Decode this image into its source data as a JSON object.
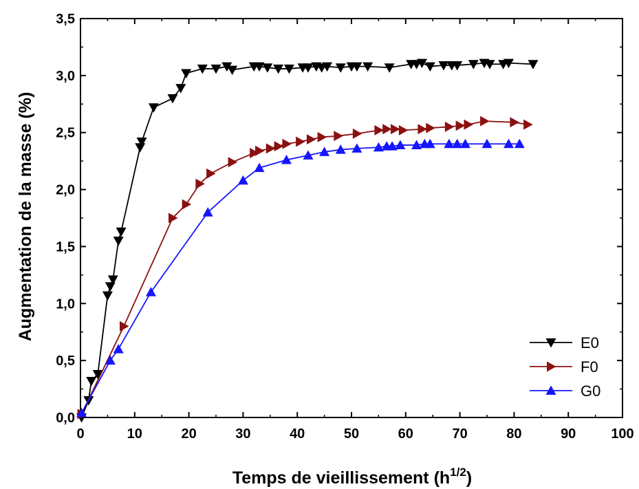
{
  "chart_data": {
    "type": "line",
    "xlabel": "Temps de vieillissement (h",
    "xlabel_sup": "1/2",
    "xlabel_end": ")",
    "ylabel": "Augmentation de la masse (%)",
    "xlim": [
      0,
      100
    ],
    "ylim": [
      0,
      3.5
    ],
    "x_ticks": [
      "0",
      "10",
      "20",
      "30",
      "40",
      "50",
      "60",
      "70",
      "80",
      "90",
      "100"
    ],
    "y_ticks": [
      "0,0",
      "0,5",
      "1,0",
      "1,5",
      "2,0",
      "2,5",
      "3,0",
      "3,5"
    ],
    "grid": false,
    "legend_position": "bottom-right",
    "series": [
      {
        "name": "E0",
        "color": "#000000",
        "marker": "triangle-down",
        "x": [
          0.2,
          1.5,
          2.0,
          3.2,
          5.0,
          5.5,
          6.0,
          7.0,
          7.5,
          11.0,
          11.3,
          13.5,
          17.0,
          18.5,
          19.5,
          22.5,
          25.0,
          27.0,
          28.0,
          32.0,
          33.0,
          34.5,
          36.5,
          38.5,
          41.0,
          42.0,
          43.5,
          44.5,
          45.5,
          48.0,
          50.0,
          51.0,
          53.0,
          57.0,
          61.0,
          62.0,
          63.0,
          64.5,
          67.0,
          68.5,
          69.5,
          72.5,
          74.5,
          75.5,
          78.0,
          79.0,
          83.5
        ],
        "y": [
          0.0,
          0.15,
          0.32,
          0.38,
          1.07,
          1.15,
          1.21,
          1.55,
          1.63,
          2.37,
          2.42,
          2.72,
          2.8,
          2.89,
          3.02,
          3.06,
          3.06,
          3.08,
          3.05,
          3.08,
          3.08,
          3.07,
          3.06,
          3.06,
          3.07,
          3.07,
          3.08,
          3.07,
          3.08,
          3.07,
          3.08,
          3.08,
          3.08,
          3.07,
          3.1,
          3.1,
          3.11,
          3.08,
          3.09,
          3.09,
          3.09,
          3.1,
          3.11,
          3.1,
          3.1,
          3.11,
          3.1
        ]
      },
      {
        "name": "F0",
        "color": "#8b1010",
        "marker": "triangle-right",
        "x": [
          0.2,
          8.0,
          17.0,
          19.5,
          22.0,
          24.0,
          28.0,
          32.0,
          33.0,
          35.0,
          36.5,
          38.0,
          40.5,
          42.5,
          44.5,
          47.5,
          51.0,
          55.0,
          56.5,
          58.0,
          59.5,
          63.0,
          64.5,
          68.0,
          70.0,
          71.5,
          74.5,
          80.0,
          82.5
        ],
        "y": [
          0.03,
          0.8,
          1.75,
          1.87,
          2.05,
          2.14,
          2.24,
          2.32,
          2.34,
          2.36,
          2.38,
          2.4,
          2.42,
          2.44,
          2.46,
          2.47,
          2.49,
          2.52,
          2.53,
          2.53,
          2.52,
          2.53,
          2.54,
          2.55,
          2.56,
          2.57,
          2.6,
          2.59,
          2.57
        ]
      },
      {
        "name": "G0",
        "color": "#1515ff",
        "marker": "triangle-up",
        "x": [
          0.2,
          5.5,
          7.0,
          13.0,
          23.5,
          30.0,
          33.0,
          38.0,
          42.0,
          45.0,
          48.0,
          51.0,
          55.0,
          56.5,
          57.5,
          59.0,
          62.0,
          63.5,
          64.5,
          68.0,
          69.5,
          71.0,
          75.0,
          79.0,
          81.0
        ],
        "y": [
          0.04,
          0.5,
          0.6,
          1.1,
          1.8,
          2.08,
          2.19,
          2.26,
          2.3,
          2.33,
          2.35,
          2.36,
          2.37,
          2.38,
          2.38,
          2.39,
          2.39,
          2.4,
          2.4,
          2.4,
          2.4,
          2.4,
          2.4,
          2.4,
          2.4
        ]
      }
    ]
  }
}
